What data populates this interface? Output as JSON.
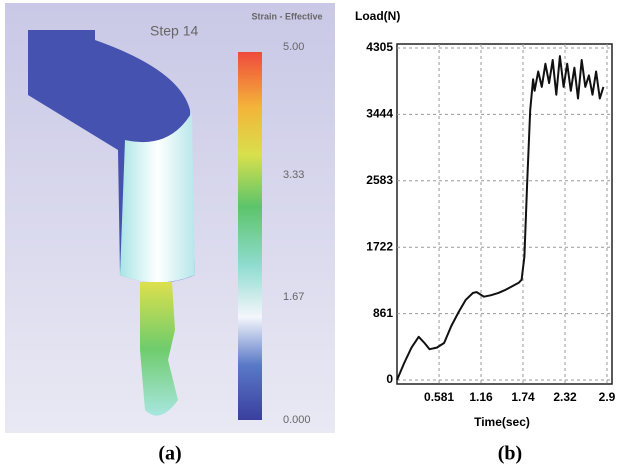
{
  "simulation": {
    "title": "Step 14",
    "colorbar_label": "Strain - Effective",
    "colorbar_lim": [
      0,
      5
    ],
    "colorbar_ticks": [
      {
        "value": 5,
        "label": "5.00"
      },
      {
        "value": 3.33,
        "label": "3.33"
      },
      {
        "value": 1.67,
        "label": "1.67"
      },
      {
        "value": 0,
        "label": "0.000"
      }
    ],
    "caption": "(a)"
  },
  "chart_data": {
    "type": "line",
    "ylabel": "Load(N)",
    "xlabel": "Time(sec)",
    "caption": "(b)",
    "x": [
      0,
      0.1,
      0.2,
      0.3,
      0.38,
      0.45,
      0.55,
      0.65,
      0.75,
      0.85,
      0.95,
      1.05,
      1.1,
      1.2,
      1.3,
      1.4,
      1.5,
      1.6,
      1.68,
      1.72,
      1.76,
      1.8,
      1.84,
      1.88,
      1.9,
      1.95,
      2.0,
      2.05,
      2.1,
      2.15,
      2.2,
      2.25,
      2.3,
      2.35,
      2.4,
      2.45,
      2.5,
      2.55,
      2.6,
      2.65,
      2.7,
      2.75,
      2.8,
      2.85
    ],
    "values": [
      0,
      220,
      420,
      560,
      480,
      400,
      420,
      480,
      700,
      880,
      1040,
      1130,
      1140,
      1080,
      1100,
      1130,
      1170,
      1220,
      1260,
      1300,
      1600,
      2600,
      3500,
      3900,
      3750,
      4000,
      3800,
      4100,
      3850,
      4150,
      3700,
      4200,
      3800,
      4100,
      3750,
      4050,
      3650,
      4150,
      3800,
      3950,
      3700,
      4000,
      3650,
      3800
    ],
    "color": "#111111",
    "xlim": [
      0,
      2.9
    ],
    "ylim": [
      0,
      4305
    ],
    "xticks": [
      0.581,
      1.16,
      1.74,
      2.32,
      2.9
    ],
    "yticks": [
      0,
      861,
      1722,
      2583,
      3444,
      4305
    ],
    "grid": true
  }
}
